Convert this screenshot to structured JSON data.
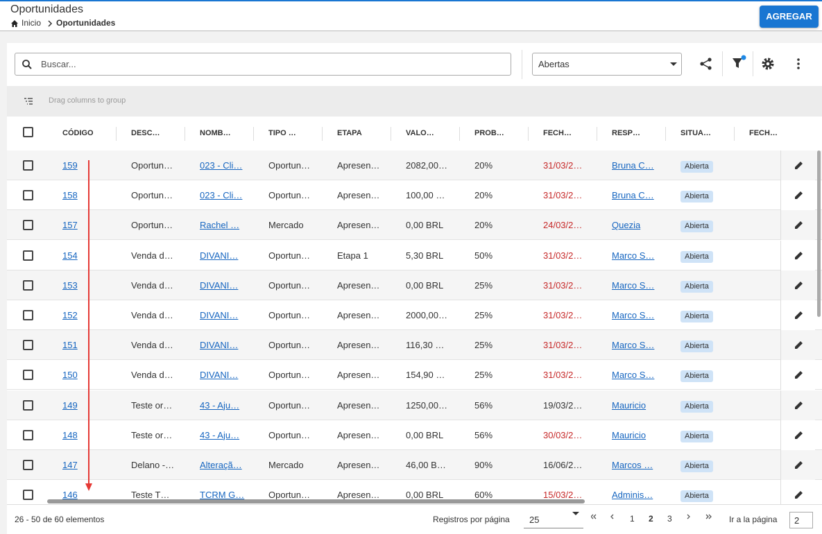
{
  "header": {
    "title": "Oportunidades",
    "breadcrumb": [
      "Inicio",
      "Oportunidades"
    ],
    "button": "AGREGAR"
  },
  "toolbar": {
    "search_placeholder": "Buscar...",
    "filter": "Abertas",
    "group_hint": "Drag columns to group"
  },
  "table": {
    "columns": [
      "CÓDIGO",
      "DESC…",
      "NOMB…",
      "TIPO …",
      "ETAPA",
      "VALO…",
      "PROB…",
      "FECH…",
      "RESP…",
      "SITUA…",
      "FECH…"
    ],
    "rows": [
      {
        "code": "159",
        "description": "Oportun…",
        "name": "023 - Cli…",
        "type": "Oportun…",
        "stage": "Apresen…",
        "value": "2082,00…",
        "probability": "20%",
        "close_date": "31/03/2…",
        "date_color": "#c62828",
        "owner": "Bruna C…",
        "status": "Abierta"
      },
      {
        "code": "158",
        "description": "Oportun…",
        "name": "023 - Cli…",
        "type": "Oportun…",
        "stage": "Apresen…",
        "value": "100,00 …",
        "probability": "20%",
        "close_date": "31/03/2…",
        "date_color": "#c62828",
        "owner": "Bruna C…",
        "status": "Abierta"
      },
      {
        "code": "157",
        "description": "Oportun…",
        "name": "Rachel …",
        "type": "Mercado",
        "stage": "Apresen…",
        "value": "0,00 BRL",
        "probability": "20%",
        "close_date": "24/03/2…",
        "date_color": "#c62828",
        "owner": "Quezia",
        "status": "Abierta"
      },
      {
        "code": "154",
        "description": "Venda d…",
        "name": "DIVANI…",
        "type": "Oportun…",
        "stage": "Etapa 1",
        "value": "5,30 BRL",
        "probability": "50%",
        "close_date": "31/03/2…",
        "date_color": "#c62828",
        "owner": "Marco S…",
        "status": "Abierta"
      },
      {
        "code": "153",
        "description": "Venda d…",
        "name": "DIVANI…",
        "type": "Oportun…",
        "stage": "Apresen…",
        "value": "0,00 BRL",
        "probability": "25%",
        "close_date": "31/03/2…",
        "date_color": "#c62828",
        "owner": "Marco S…",
        "status": "Abierta"
      },
      {
        "code": "152",
        "description": "Venda d…",
        "name": "DIVANI…",
        "type": "Oportun…",
        "stage": "Apresen…",
        "value": "2000,00…",
        "probability": "25%",
        "close_date": "31/03/2…",
        "date_color": "#c62828",
        "owner": "Marco S…",
        "status": "Abierta"
      },
      {
        "code": "151",
        "description": "Venda d…",
        "name": "DIVANI…",
        "type": "Oportun…",
        "stage": "Apresen…",
        "value": "116,30 …",
        "probability": "25%",
        "close_date": "31/03/2…",
        "date_color": "#c62828",
        "owner": "Marco S…",
        "status": "Abierta"
      },
      {
        "code": "150",
        "description": "Venda d…",
        "name": "DIVANI…",
        "type": "Oportun…",
        "stage": "Apresen…",
        "value": "154,90 …",
        "probability": "25%",
        "close_date": "31/03/2…",
        "date_color": "#c62828",
        "owner": "Marco S…",
        "status": "Abierta"
      },
      {
        "code": "149",
        "description": "Teste or…",
        "name": "43 - Aju…",
        "type": "Oportun…",
        "stage": "Apresen…",
        "value": "1250,00…",
        "probability": "56%",
        "close_date": "19/03/2…",
        "date_color": "#333333",
        "owner": "Mauricio",
        "status": "Abierta"
      },
      {
        "code": "148",
        "description": "Teste or…",
        "name": "43 - Aju…",
        "type": "Oportun…",
        "stage": "Apresen…",
        "value": "0,00 BRL",
        "probability": "56%",
        "close_date": "30/03/2…",
        "date_color": "#c62828",
        "owner": "Mauricio",
        "status": "Abierta"
      },
      {
        "code": "147",
        "description": "Delano -…",
        "name": "Alteraçã…",
        "type": "Mercado",
        "stage": "Apresen…",
        "value": "46,00 B…",
        "probability": "90%",
        "close_date": "16/06/2…",
        "date_color": "#333333",
        "owner": "Marcos …",
        "status": "Abierta"
      },
      {
        "code": "146",
        "description": "Teste T…",
        "name": "TCRM G…",
        "type": "Oportun…",
        "stage": "Apresen…",
        "value": "0,00 BRL",
        "probability": "60%",
        "close_date": "15/03/2…",
        "date_color": "#c62828",
        "owner": "Adminis…",
        "status": "Abierta"
      }
    ]
  },
  "footer": {
    "summary": "26 - 50 de 60 elementos",
    "page_size_label": "Registros por página",
    "page_size": "25",
    "pages": [
      "1",
      "2",
      "3"
    ],
    "current_page_index": 1,
    "goto_label": "Ir a la página",
    "goto_value": "2"
  }
}
